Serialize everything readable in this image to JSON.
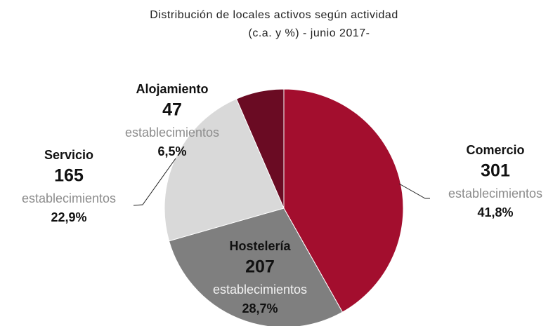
{
  "chart_data": {
    "type": "pie",
    "title": "Distribución de locales activos según actividad",
    "subtitle": "(c.a. y %) - junio 2017-",
    "categories": [
      "Comercio",
      "Hostelería",
      "Servicio",
      "Alojamiento"
    ],
    "values": [
      41.8,
      28.7,
      22.9,
      6.5
    ],
    "value_labels": [
      "41,8%",
      "28,7%",
      "22,9%",
      "6,5%"
    ],
    "counts": [
      301,
      207,
      165,
      47
    ],
    "unit_label": "establecimientos",
    "colors": [
      "#a30e2e",
      "#7f7f7f",
      "#d9d9d9",
      "#6a0b23"
    ]
  }
}
